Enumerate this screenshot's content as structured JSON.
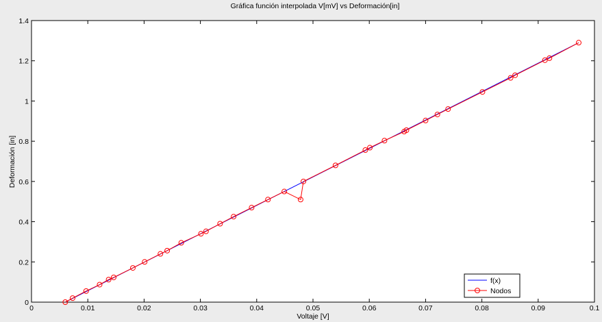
{
  "chart_data": {
    "type": "line",
    "title": "Gráfica función interpolada V[mV] vs Deformación[in]",
    "xlabel": "Voltaje [V]",
    "ylabel": "Deformación [in]",
    "xlim": [
      0,
      0.1
    ],
    "ylim": [
      0,
      1.4
    ],
    "xticks": [
      0,
      0.01,
      0.02,
      0.03,
      0.04,
      0.05,
      0.06,
      0.07,
      0.08,
      0.09,
      0.1
    ],
    "xtick_labels": [
      "0",
      "0.01",
      "0.02",
      "0.03",
      "0.04",
      "0.05",
      "0.06",
      "0.07",
      "0.08",
      "0.09",
      "0.1"
    ],
    "yticks": [
      0,
      0.2,
      0.4,
      0.6,
      0.8,
      1,
      1.2,
      1.4
    ],
    "ytick_labels": [
      "0",
      "0.2",
      "0.4",
      "0.6",
      "0.8",
      "1",
      "1.2",
      "1.4"
    ],
    "grid": false,
    "legend_position": "bottom-right",
    "colors": {
      "fx": "#0000ff",
      "nodos": "#ff0000",
      "background": "#ececec",
      "axes": "#ffffff"
    },
    "series": [
      {
        "name": "f(x)",
        "style": "line",
        "x": [
          0.006,
          0.0972
        ],
        "y": [
          0.0,
          1.29
        ]
      },
      {
        "name": "Nodos",
        "style": "line-circle-markers",
        "x": [
          0.006,
          0.0073,
          0.0097,
          0.0121,
          0.0137,
          0.0146,
          0.018,
          0.0201,
          0.0229,
          0.0241,
          0.0266,
          0.0301,
          0.031,
          0.0335,
          0.0359,
          0.0391,
          0.042,
          0.0449,
          0.0478,
          0.0483,
          0.054,
          0.0593,
          0.0601,
          0.0627,
          0.0662,
          0.0666,
          0.07,
          0.0721,
          0.074,
          0.0801,
          0.0851,
          0.0859,
          0.0912,
          0.092,
          0.0972
        ],
        "y": [
          0.0,
          0.02,
          0.055,
          0.087,
          0.112,
          0.123,
          0.17,
          0.2,
          0.24,
          0.256,
          0.295,
          0.34,
          0.352,
          0.39,
          0.425,
          0.47,
          0.51,
          0.55,
          0.51,
          0.6,
          0.68,
          0.756,
          0.768,
          0.803,
          0.848,
          0.855,
          0.903,
          0.933,
          0.96,
          1.045,
          1.115,
          1.128,
          1.203,
          1.213,
          1.29
        ]
      }
    ]
  }
}
